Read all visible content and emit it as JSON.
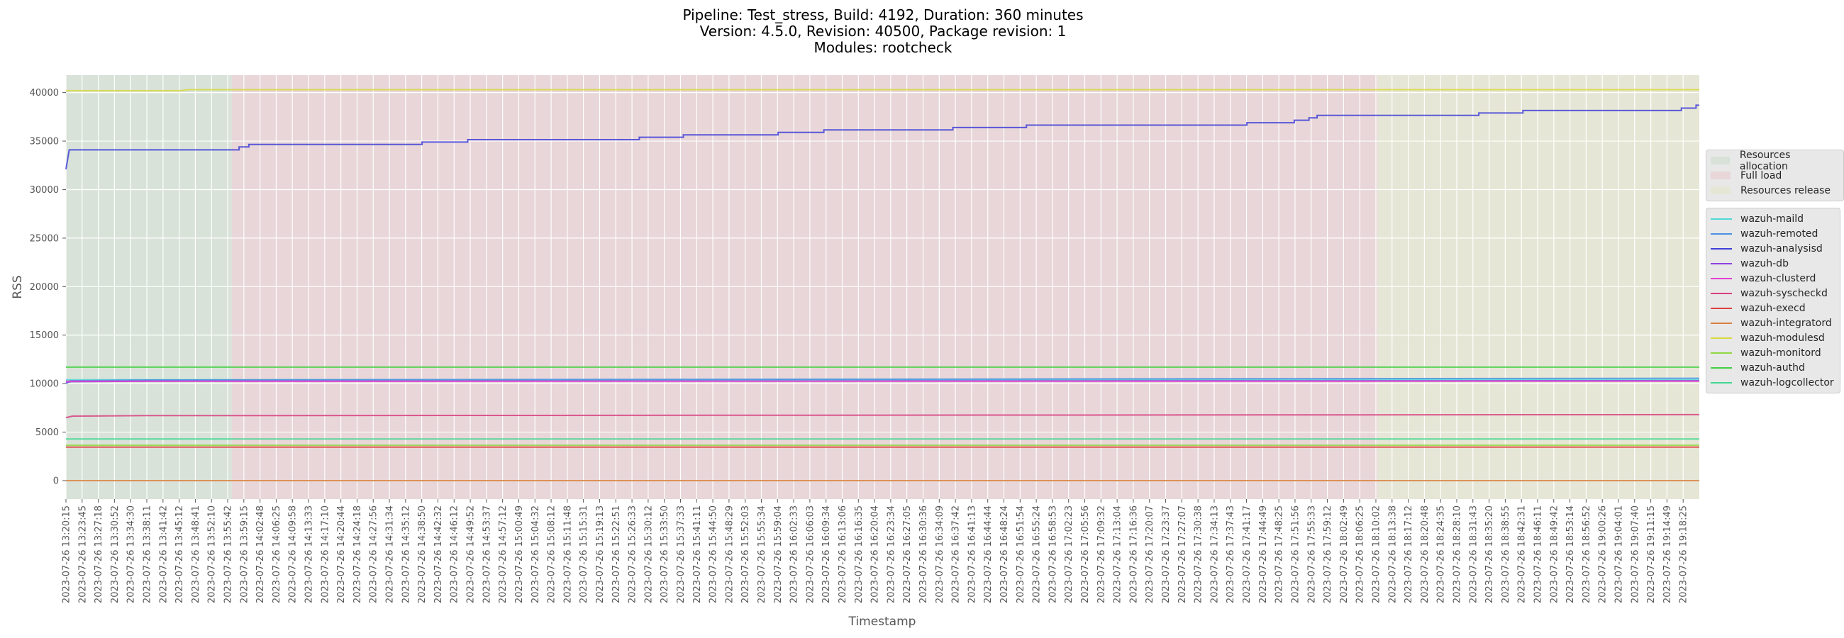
{
  "title": {
    "line1": "Pipeline: Test_stress, Build: 4192, Duration: 360 minutes",
    "line2": "Version: 4.5.0, Revision: 40500, Package revision: 1",
    "line3": "Modules: rootcheck"
  },
  "phase_legend": [
    {
      "label": "Resources allocation",
      "color": "#d8e2d8"
    },
    {
      "label": "Full load",
      "color": "#e8d6d8"
    },
    {
      "label": "Resources release",
      "color": "#e6e6d6"
    }
  ],
  "chart_data": {
    "type": "line",
    "title": "Pipeline: Test_stress, Build: 4192, Duration: 360 minutes\nVersion: 4.5.0, Revision: 40500, Package revision: 1\nModules: rootcheck",
    "xlabel": "Timestamp",
    "ylabel": "RSS",
    "ylim": [
      -1900,
      41800
    ],
    "yticks": [
      0,
      5000,
      10000,
      15000,
      20000,
      25000,
      30000,
      35000,
      40000
    ],
    "grid": true,
    "legend_position": "right, outside plot",
    "phases": [
      {
        "label": "Resources allocation",
        "start_index": 0,
        "end_index": 10.15,
        "color": "#d8e2d8"
      },
      {
        "label": "Full load",
        "start_index": 10.15,
        "end_index": 80.3,
        "color": "#e8d6d8"
      },
      {
        "label": "Resources release",
        "start_index": 80.3,
        "end_index": 100,
        "color": "#e6e6d6"
      }
    ],
    "x_ticks": [
      "2023-07-26 13:20:15",
      "2023-07-26 13:23:45",
      "2023-07-26 13:27:18",
      "2023-07-26 13:30:52",
      "2023-07-26 13:34:30",
      "2023-07-26 13:38:11",
      "2023-07-26 13:41:42",
      "2023-07-26 13:45:12",
      "2023-07-26 13:48:41",
      "2023-07-26 13:52:10",
      "2023-07-26 13:55:42",
      "2023-07-26 13:59:15",
      "2023-07-26 14:02:48",
      "2023-07-26 14:06:25",
      "2023-07-26 14:09:58",
      "2023-07-26 14:13:33",
      "2023-07-26 14:17:10",
      "2023-07-26 14:20:44",
      "2023-07-26 14:24:18",
      "2023-07-26 14:27:56",
      "2023-07-26 14:31:34",
      "2023-07-26 14:35:12",
      "2023-07-26 14:38:50",
      "2023-07-26 14:42:32",
      "2023-07-26 14:46:12",
      "2023-07-26 14:49:52",
      "2023-07-26 14:53:37",
      "2023-07-26 14:57:12",
      "2023-07-26 15:00:49",
      "2023-07-26 15:04:32",
      "2023-07-26 15:08:12",
      "2023-07-26 15:11:48",
      "2023-07-26 15:15:31",
      "2023-07-26 15:19:13",
      "2023-07-26 15:22:51",
      "2023-07-26 15:26:33",
      "2023-07-26 15:30:12",
      "2023-07-26 15:33:50",
      "2023-07-26 15:37:33",
      "2023-07-26 15:41:11",
      "2023-07-26 15:44:50",
      "2023-07-26 15:48:29",
      "2023-07-26 15:52:03",
      "2023-07-26 15:55:34",
      "2023-07-26 15:59:04",
      "2023-07-26 16:02:33",
      "2023-07-26 16:06:03",
      "2023-07-26 16:09:34",
      "2023-07-26 16:13:06",
      "2023-07-26 16:16:35",
      "2023-07-26 16:20:04",
      "2023-07-26 16:23:34",
      "2023-07-26 16:27:05",
      "2023-07-26 16:30:36",
      "2023-07-26 16:34:09",
      "2023-07-26 16:37:42",
      "2023-07-26 16:41:13",
      "2023-07-26 16:44:44",
      "2023-07-26 16:48:24",
      "2023-07-26 16:51:54",
      "2023-07-26 16:55:24",
      "2023-07-26 16:58:53",
      "2023-07-26 17:02:23",
      "2023-07-26 17:05:56",
      "2023-07-26 17:09:32",
      "2023-07-26 17:13:04",
      "2023-07-26 17:16:36",
      "2023-07-26 17:20:07",
      "2023-07-26 17:23:37",
      "2023-07-26 17:27:07",
      "2023-07-26 17:30:38",
      "2023-07-26 17:34:13",
      "2023-07-26 17:37:43",
      "2023-07-26 17:41:17",
      "2023-07-26 17:44:49",
      "2023-07-26 17:48:25",
      "2023-07-26 17:51:56",
      "2023-07-26 17:55:33",
      "2023-07-26 17:59:12",
      "2023-07-26 18:02:49",
      "2023-07-26 18:06:25",
      "2023-07-26 18:10:02",
      "2023-07-26 18:13:38",
      "2023-07-26 18:17:12",
      "2023-07-26 18:20:48",
      "2023-07-26 18:24:35",
      "2023-07-26 18:28:10",
      "2023-07-26 18:31:43",
      "2023-07-26 18:35:20",
      "2023-07-26 18:38:55",
      "2023-07-26 18:42:31",
      "2023-07-26 18:46:11",
      "2023-07-26 18:49:42",
      "2023-07-26 18:53:14",
      "2023-07-26 18:56:52",
      "2023-07-26 19:00:26",
      "2023-07-26 19:04:01",
      "2023-07-26 19:07:40",
      "2023-07-26 19:11:15",
      "2023-07-26 19:14:49",
      "2023-07-26 19:18:25"
    ],
    "series": [
      {
        "name": "wazuh-maild",
        "color": "#4fd8d8",
        "points": [
          [
            0,
            10400
          ],
          [
            100,
            10400
          ]
        ]
      },
      {
        "name": "wazuh-remoted",
        "color": "#4a90e2",
        "points": [
          [
            0,
            10000
          ],
          [
            0.3,
            10300
          ],
          [
            5,
            10380
          ],
          [
            100,
            10550
          ]
        ]
      },
      {
        "name": "wazuh-analysisd",
        "color": "#4040d8",
        "points": [
          [
            0,
            32100
          ],
          [
            0.2,
            34100
          ],
          [
            10.6,
            34100
          ],
          [
            10.6,
            34400
          ],
          [
            11.2,
            34400
          ],
          [
            11.2,
            34650
          ],
          [
            21.8,
            34650
          ],
          [
            21.8,
            34900
          ],
          [
            24.6,
            34900
          ],
          [
            24.6,
            35150
          ],
          [
            35.1,
            35150
          ],
          [
            35.1,
            35400
          ],
          [
            37.8,
            35400
          ],
          [
            37.8,
            35650
          ],
          [
            43.6,
            35650
          ],
          [
            43.6,
            35900
          ],
          [
            46.4,
            35900
          ],
          [
            46.4,
            36150
          ],
          [
            54.3,
            36150
          ],
          [
            54.3,
            36400
          ],
          [
            58.8,
            36400
          ],
          [
            58.8,
            36650
          ],
          [
            72.3,
            36650
          ],
          [
            72.3,
            36900
          ],
          [
            75.2,
            36900
          ],
          [
            75.2,
            37150
          ],
          [
            76.1,
            37150
          ],
          [
            76.1,
            37400
          ],
          [
            76.6,
            37400
          ],
          [
            76.6,
            37650
          ],
          [
            86.5,
            37650
          ],
          [
            86.5,
            37900
          ],
          [
            89.2,
            37900
          ],
          [
            89.2,
            38150
          ],
          [
            98.9,
            38150
          ],
          [
            98.9,
            38400
          ],
          [
            99.8,
            38400
          ],
          [
            99.8,
            38700
          ],
          [
            100,
            38700
          ]
        ]
      },
      {
        "name": "wazuh-db",
        "color": "#9040e0",
        "points": [
          [
            0,
            10100
          ],
          [
            0.3,
            10200
          ],
          [
            5,
            10250
          ],
          [
            100,
            10300
          ]
        ]
      },
      {
        "name": "wazuh-clusterd",
        "color": "#e040d0",
        "points": [
          [
            0,
            10250
          ],
          [
            100,
            10250
          ]
        ]
      },
      {
        "name": "wazuh-syscheckd",
        "color": "#d84080",
        "points": [
          [
            0,
            6500
          ],
          [
            0.4,
            6650
          ],
          [
            5,
            6700
          ],
          [
            100,
            6800
          ]
        ]
      },
      {
        "name": "wazuh-execd",
        "color": "#e04040",
        "points": [
          [
            0,
            3450
          ],
          [
            100,
            3450
          ]
        ]
      },
      {
        "name": "wazuh-integratord",
        "color": "#d88040",
        "points": [
          [
            0,
            0
          ],
          [
            100,
            0
          ]
        ]
      },
      {
        "name": "wazuh-modulesd",
        "color": "#d8d840",
        "points": [
          [
            0,
            40200
          ],
          [
            7,
            40200
          ],
          [
            7.5,
            40300
          ],
          [
            100,
            40300
          ]
        ]
      },
      {
        "name": "wazuh-monitord",
        "color": "#90d840",
        "points": [
          [
            0,
            3650
          ],
          [
            100,
            3650
          ]
        ]
      },
      {
        "name": "wazuh-authd",
        "color": "#40d040",
        "points": [
          [
            0,
            11700
          ],
          [
            100,
            11700
          ]
        ]
      },
      {
        "name": "wazuh-logcollector",
        "color": "#40d890",
        "points": [
          [
            0,
            4300
          ],
          [
            100,
            4300
          ]
        ]
      }
    ]
  }
}
